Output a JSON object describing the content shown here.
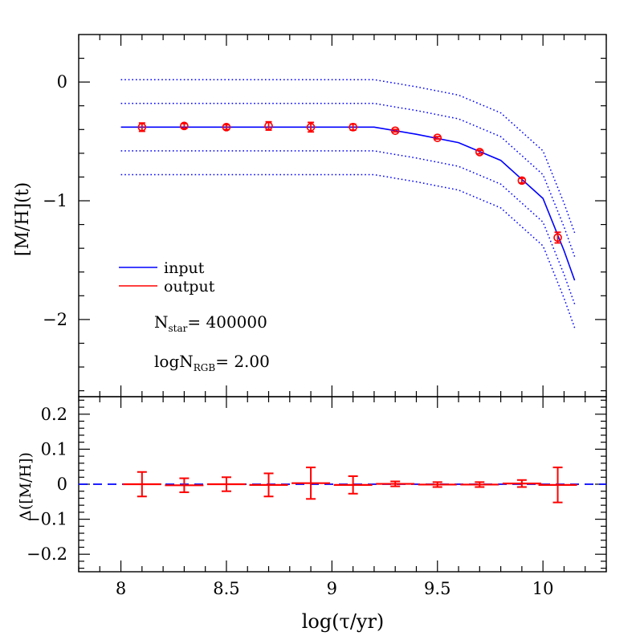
{
  "chart_data": [
    {
      "type": "line",
      "panel": "top",
      "xlabel": "log(τ/yr)",
      "ylabel": "[M/H](t)",
      "xlim": [
        7.8,
        10.3
      ],
      "ylim": [
        -2.65,
        0.4
      ],
      "xticks": [
        8,
        8.5,
        9,
        9.5,
        10
      ],
      "xtick_labels": [
        "8",
        "8.5",
        "9",
        "9.5",
        "10"
      ],
      "yticks": [
        0,
        -1,
        -2
      ],
      "ytick_labels": [
        "0",
        "−1",
        "−2"
      ],
      "legend": {
        "placement": "lower-left",
        "entries": [
          {
            "label": "input",
            "color": "#0000ff"
          },
          {
            "label": "output",
            "color": "#ff0000"
          }
        ]
      },
      "annotations": [
        {
          "main": "N",
          "sub": "star",
          "value": "=  400000"
        },
        {
          "main": "logN",
          "sub": "RGB",
          "value": "=  2.00"
        }
      ],
      "series": [
        {
          "name": "input",
          "style": "solid",
          "color": "#0000ff",
          "x": [
            8.0,
            9.2,
            9.4,
            9.6,
            9.8,
            10.0,
            10.1,
            10.15
          ],
          "y": [
            -0.38,
            -0.38,
            -0.44,
            -0.51,
            -0.66,
            -0.98,
            -1.42,
            -1.67
          ]
        },
        {
          "style": "dotted",
          "color": "#0000ff",
          "x": [
            8.0,
            9.2,
            9.4,
            9.6,
            9.8,
            10.0,
            10.1,
            10.15
          ],
          "y": [
            0.02,
            0.02,
            -0.04,
            -0.11,
            -0.26,
            -0.58,
            -1.02,
            -1.27
          ]
        },
        {
          "style": "dotted",
          "color": "#0000ff",
          "x": [
            8.0,
            9.2,
            9.4,
            9.6,
            9.8,
            10.0,
            10.1,
            10.15
          ],
          "y": [
            -0.18,
            -0.18,
            -0.24,
            -0.31,
            -0.46,
            -0.78,
            -1.22,
            -1.47
          ]
        },
        {
          "style": "dotted",
          "color": "#0000ff",
          "x": [
            8.0,
            9.2,
            9.4,
            9.6,
            9.8,
            10.0,
            10.1,
            10.15
          ],
          "y": [
            -0.58,
            -0.58,
            -0.64,
            -0.71,
            -0.86,
            -1.18,
            -1.62,
            -1.87
          ]
        },
        {
          "style": "dotted",
          "color": "#0000ff",
          "x": [
            8.0,
            9.2,
            9.4,
            9.6,
            9.8,
            10.0,
            10.1,
            10.15
          ],
          "y": [
            -0.78,
            -0.78,
            -0.84,
            -0.91,
            -1.06,
            -1.38,
            -1.82,
            -2.07
          ]
        },
        {
          "name": "output",
          "style": "markers",
          "color": "#ff0000",
          "x": [
            8.1,
            8.3,
            8.5,
            8.7,
            8.9,
            9.1,
            9.3,
            9.5,
            9.7,
            9.9,
            10.07
          ],
          "y": [
            -0.38,
            -0.37,
            -0.38,
            -0.37,
            -0.38,
            -0.38,
            -0.41,
            -0.47,
            -0.59,
            -0.83,
            -1.31
          ],
          "err": [
            0.035,
            0.02,
            0.02,
            0.035,
            0.04,
            0.025,
            0.01,
            0.01,
            0.015,
            0.02,
            0.045
          ]
        }
      ]
    },
    {
      "type": "scatter",
      "panel": "bottom",
      "xlabel": "log(τ/yr)",
      "ylabel": "Δ([M/H])",
      "xlim": [
        7.8,
        10.3
      ],
      "ylim": [
        -0.25,
        0.25
      ],
      "xticks": [
        8,
        8.5,
        9,
        9.5,
        10
      ],
      "xtick_labels": [
        "8",
        "8.5",
        "9",
        "9.5",
        "10"
      ],
      "yticks": [
        0.2,
        0.1,
        0,
        -0.1,
        -0.2
      ],
      "ytick_labels": [
        "0.2",
        "0.1",
        "0",
        "−0.1",
        "−0.2"
      ],
      "reference_line": {
        "y": 0,
        "style": "dashed",
        "color": "#0000ff"
      },
      "series": [
        {
          "color": "#ff0000",
          "x": [
            8.1,
            8.3,
            8.5,
            8.7,
            8.9,
            9.1,
            9.3,
            9.5,
            9.7,
            9.9,
            10.07
          ],
          "y": [
            0.0,
            -0.003,
            0.0,
            -0.002,
            0.003,
            -0.002,
            0.001,
            -0.001,
            -0.001,
            0.002,
            -0.002
          ],
          "err": [
            0.035,
            0.02,
            0.02,
            0.033,
            0.045,
            0.025,
            0.007,
            0.007,
            0.007,
            0.01,
            0.05
          ]
        }
      ]
    }
  ]
}
